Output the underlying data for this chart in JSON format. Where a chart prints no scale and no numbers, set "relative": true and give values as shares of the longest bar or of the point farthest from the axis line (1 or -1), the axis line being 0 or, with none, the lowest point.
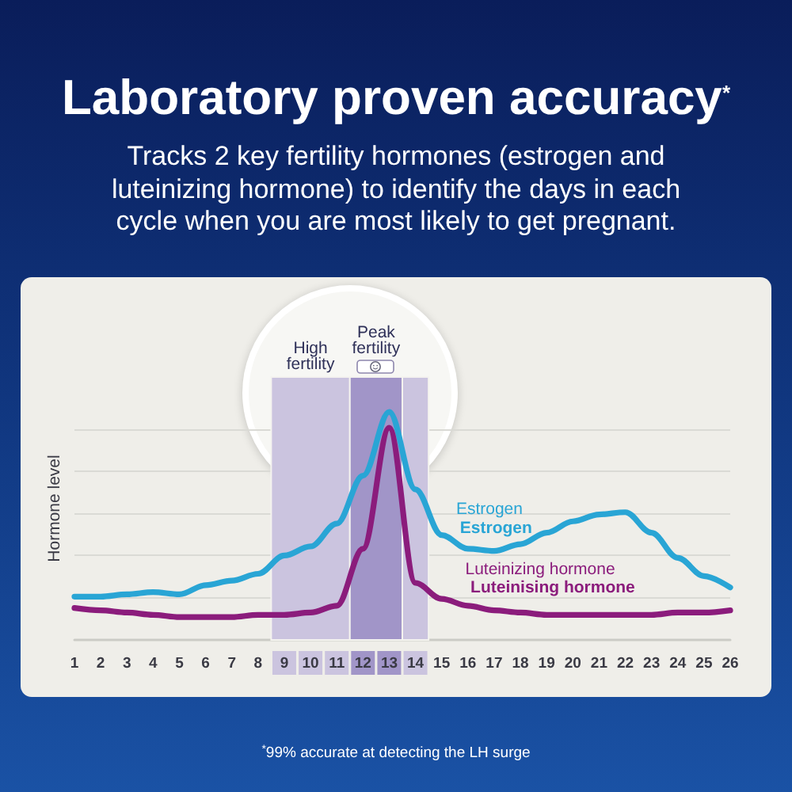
{
  "chart_data": {
    "type": "line",
    "title": "Laboratory proven accuracy$^{*}$",
    "subtitle": "Tracks 2 key fertility hormones (estrogen and luteinizing hormone) to identify the days in each cycle when you are most likely to get pregnant.",
    "ylabel": "Hormone level",
    "x": [
      1,
      2,
      3,
      4,
      5,
      6,
      7,
      8,
      9,
      10,
      11,
      12,
      13,
      14,
      15,
      16,
      17,
      18,
      19,
      20,
      21,
      22,
      23,
      24,
      25,
      26
    ],
    "xlim": [
      1,
      26
    ],
    "xticks": [
      1,
      2,
      3,
      4,
      5,
      6,
      7,
      8,
      9,
      10,
      11,
      12,
      13,
      14,
      15,
      16,
      17,
      18,
      19,
      20,
      21,
      22,
      23,
      24,
      25,
      26
    ],
    "relative": true,
    "series": [
      {
        "name": "Estrogen",
        "color": "#29a5d5",
        "values": [
          0.19,
          0.19,
          0.2,
          0.21,
          0.2,
          0.24,
          0.26,
          0.29,
          0.37,
          0.41,
          0.51,
          0.72,
          1,
          0.66,
          0.46,
          0.4,
          0.39,
          0.42,
          0.47,
          0.52,
          0.55,
          0.56,
          0.47,
          0.36,
          0.28,
          0.23
        ]
      },
      {
        "name": "Luteinizing hormone",
        "color": "#8b1c7c",
        "values": [
          0.14,
          0.13,
          0.12,
          0.11,
          0.1,
          0.1,
          0.1,
          0.11,
          0.11,
          0.12,
          0.15,
          0.4,
          0.93,
          0.25,
          0.18,
          0.15,
          0.13,
          0.12,
          0.11,
          0.11,
          0.11,
          0.11,
          0.11,
          0.12,
          0.12,
          0.13
        ]
      }
    ],
    "bands": [
      {
        "axis": "x",
        "from": 8.5,
        "to": 11.5,
        "label": "High fertility",
        "color": "#cbc4df"
      },
      {
        "axis": "x",
        "from": 11.5,
        "to": 13.5,
        "label": "Peak fertility",
        "color": "#a195c8"
      },
      {
        "axis": "x",
        "from": 13.5,
        "to": 14.5,
        "color": "#cbc4df"
      }
    ],
    "annotations": [
      "$^{*}$99% accurate at detecting the LH surge",
      {
        "text": "Estrogen",
        "x": 15.7,
        "y": 0.45
      },
      {
        "text": "Luteinising hormone",
        "x": 16.1,
        "y": 0.19
      }
    ],
    "grid": "y",
    "marker": "none",
    "line_style": "solid"
  }
}
